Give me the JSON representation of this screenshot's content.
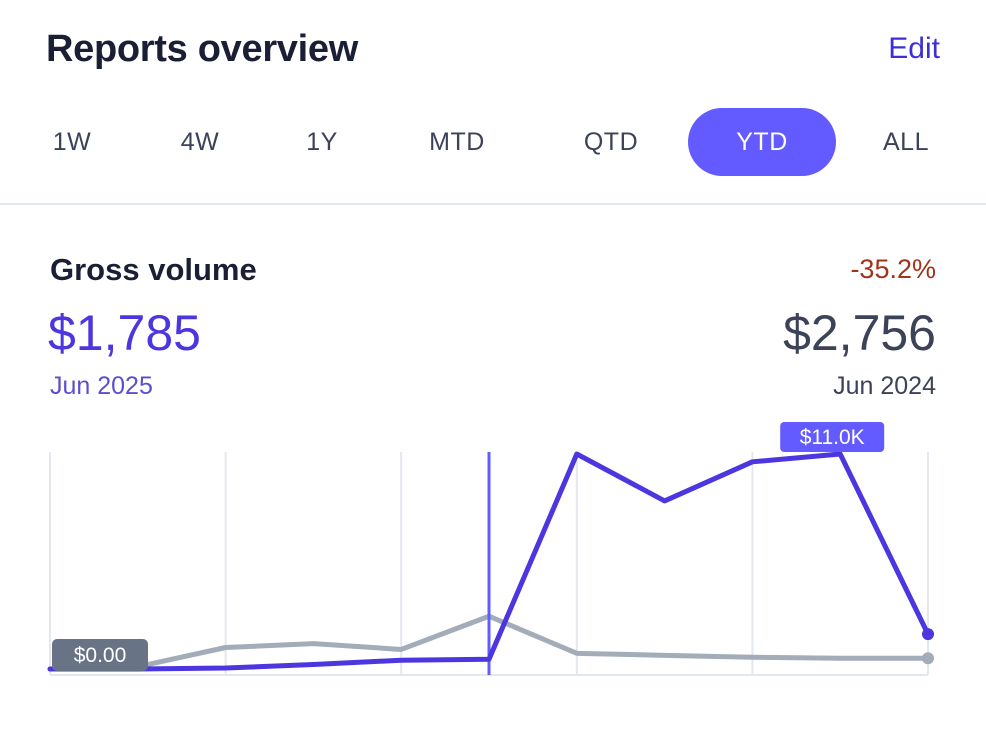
{
  "header": {
    "title": "Reports overview",
    "edit_label": "Edit"
  },
  "tabs": [
    {
      "label": "1W",
      "active": false
    },
    {
      "label": "4W",
      "active": false
    },
    {
      "label": "1Y",
      "active": false
    },
    {
      "label": "MTD",
      "active": false
    },
    {
      "label": "QTD",
      "active": false
    },
    {
      "label": "YTD",
      "active": true
    },
    {
      "label": "ALL",
      "active": false
    }
  ],
  "metric": {
    "label": "Gross volume",
    "change": "-35.2%",
    "current_value": "$1,785",
    "current_date": "Jun 2025",
    "previous_value": "$2,756",
    "previous_date": "Jun 2024"
  },
  "colors": {
    "accent": "#635bff",
    "current_series": "#4b36e0",
    "previous_series": "#a3acb9",
    "negative_change": "#a4321b",
    "tooltip_min": "#697386",
    "gridline": "#e3e8ee"
  },
  "chart_data": {
    "type": "line",
    "x": [
      0,
      1,
      2,
      3,
      4,
      5,
      6,
      7,
      8,
      9,
      10
    ],
    "series": [
      {
        "role": "current",
        "values": [
          0,
          0,
          50,
          230,
          450,
          500,
          11000,
          8600,
          10600,
          11000,
          1785
        ]
      },
      {
        "role": "previous",
        "values": [
          0,
          120,
          1100,
          1300,
          1000,
          2700,
          800,
          700,
          600,
          550,
          550
        ]
      }
    ],
    "ylim": [
      0,
      11000
    ],
    "cursor_index": 5,
    "annotations": {
      "max_label": "$11.0K",
      "min_label": "$0.00"
    },
    "grid": "vertical"
  }
}
